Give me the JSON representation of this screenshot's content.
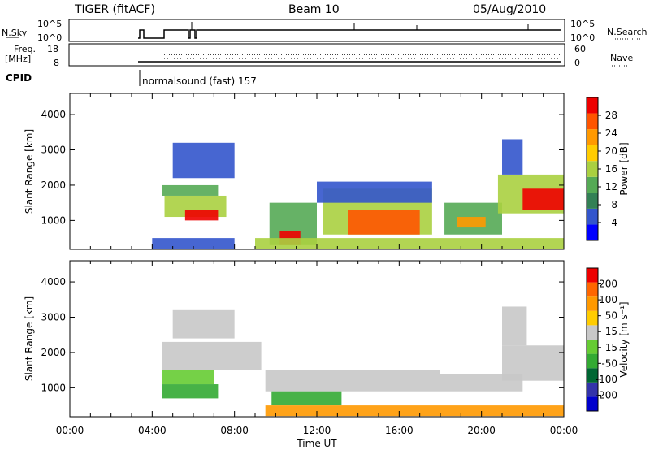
{
  "header": {
    "radar_title": "TIGER (fitACF)",
    "beam": "Beam 10",
    "date": "05/Aug/2010"
  },
  "status_panels": {
    "nsky_label": "N.Sky",
    "nsearch_label": "N.Search",
    "nsky_ticks": [
      "10^5",
      "10^0"
    ],
    "nsearch_ticks": [
      "10^5",
      "10^0"
    ],
    "freq_label_1": "Freq.",
    "freq_label_2": "[MHz]",
    "freq_ticks": [
      "18",
      "8"
    ],
    "nave_label": "Nave",
    "nave_ticks": [
      "60",
      "0"
    ],
    "cpid_label": "CPID",
    "cpid_text": "normalsound (fast) 157"
  },
  "colors": {
    "power": [
      "#0000ff",
      "#3355cc",
      "#338055",
      "#55aa55",
      "#aad040",
      "#ffcc00",
      "#ff9900",
      "#ff5500",
      "#ee0000"
    ],
    "velocity": [
      "#0000cc",
      "#3333aa",
      "#006633",
      "#33aa33",
      "#66cc33",
      "#c8c8c8",
      "#ffcc00",
      "#ff9900",
      "#ff6600",
      "#ee0000"
    ]
  },
  "chart_data": [
    {
      "type": "heatmap",
      "quantity": "power",
      "ylabel": "Slant Range [km]",
      "xlabel": "Time UT",
      "xlim": [
        0,
        24
      ],
      "ylim": [
        180,
        4600
      ],
      "x_ticks": [
        "00:00",
        "04:00",
        "08:00",
        "12:00",
        "16:00",
        "20:00",
        "00:00"
      ],
      "y_ticks": [
        1000,
        2000,
        3000,
        4000
      ],
      "colorbar_label": "Power [dB]",
      "colorbar_ticks": [
        "4",
        "8",
        "12",
        "16",
        "20",
        "24",
        "28"
      ],
      "regions": [
        {
          "t0": 4.6,
          "t1": 7.6,
          "r0": 1100,
          "r1": 1700,
          "level": 4
        },
        {
          "t0": 5.6,
          "t1": 7.2,
          "r0": 1000,
          "r1": 1300,
          "level": 8
        },
        {
          "t0": 4.5,
          "t1": 7.2,
          "r0": 1700,
          "r1": 2000,
          "level": 3
        },
        {
          "t0": 5.0,
          "t1": 8.0,
          "r0": 2200,
          "r1": 3200,
          "level": 1
        },
        {
          "t0": 4.0,
          "t1": 8.0,
          "r0": 200,
          "r1": 500,
          "level": 1
        },
        {
          "t0": 9.7,
          "t1": 12.0,
          "r0": 300,
          "r1": 1500,
          "level": 3
        },
        {
          "t0": 10.2,
          "t1": 11.2,
          "r0": 300,
          "r1": 700,
          "level": 8
        },
        {
          "t0": 12.3,
          "t1": 17.6,
          "r0": 600,
          "r1": 1900,
          "level": 4
        },
        {
          "t0": 13.5,
          "t1": 17.0,
          "r0": 600,
          "r1": 1300,
          "level": 7
        },
        {
          "t0": 12.0,
          "t1": 17.6,
          "r0": 1500,
          "r1": 2100,
          "level": 1
        },
        {
          "t0": 18.2,
          "t1": 21.0,
          "r0": 600,
          "r1": 1500,
          "level": 3
        },
        {
          "t0": 18.8,
          "t1": 20.2,
          "r0": 800,
          "r1": 1100,
          "level": 6
        },
        {
          "t0": 20.8,
          "t1": 24.0,
          "r0": 1200,
          "r1": 2300,
          "level": 4
        },
        {
          "t0": 22.0,
          "t1": 24.0,
          "r0": 1300,
          "r1": 1900,
          "level": 8
        },
        {
          "t0": 21.0,
          "t1": 22.0,
          "r0": 2300,
          "r1": 3300,
          "level": 1
        },
        {
          "t0": 9.0,
          "t1": 24.0,
          "r0": 200,
          "r1": 500,
          "level": 4
        }
      ]
    },
    {
      "type": "heatmap",
      "quantity": "velocity",
      "ylabel": "Slant Range [km]",
      "xlabel": "Time UT",
      "xlim": [
        0,
        24
      ],
      "ylim": [
        180,
        4600
      ],
      "x_ticks": [
        "00:00",
        "04:00",
        "08:00",
        "12:00",
        "16:00",
        "20:00",
        "00:00"
      ],
      "y_ticks": [
        1000,
        2000,
        3000,
        4000
      ],
      "colorbar_label": "Velocity [m s⁻¹]",
      "colorbar_ticks": [
        "200",
        "100",
        "50",
        "15",
        "-15",
        "-50",
        "-100",
        "-200"
      ],
      "regions": [
        {
          "t0": 4.5,
          "t1": 9.3,
          "r0": 1500,
          "r1": 2300,
          "level": 5
        },
        {
          "t0": 4.5,
          "t1": 7.0,
          "r0": 1100,
          "r1": 1500,
          "level": 4
        },
        {
          "t0": 4.5,
          "t1": 7.2,
          "r0": 700,
          "r1": 1100,
          "level": 3
        },
        {
          "t0": 5.0,
          "t1": 8.0,
          "r0": 2400,
          "r1": 3200,
          "level": 5
        },
        {
          "t0": 9.5,
          "t1": 18.0,
          "r0": 900,
          "r1": 1500,
          "level": 5
        },
        {
          "t0": 9.8,
          "t1": 13.2,
          "r0": 500,
          "r1": 900,
          "level": 3
        },
        {
          "t0": 9.5,
          "t1": 24.0,
          "r0": 200,
          "r1": 500,
          "level": 7
        },
        {
          "t0": 18.0,
          "t1": 22.0,
          "r0": 900,
          "r1": 1400,
          "level": 5
        },
        {
          "t0": 21.0,
          "t1": 24.0,
          "r0": 1200,
          "r1": 2200,
          "level": 5
        },
        {
          "t0": 21.0,
          "t1": 22.2,
          "r0": 2200,
          "r1": 3300,
          "level": 5
        }
      ]
    }
  ]
}
